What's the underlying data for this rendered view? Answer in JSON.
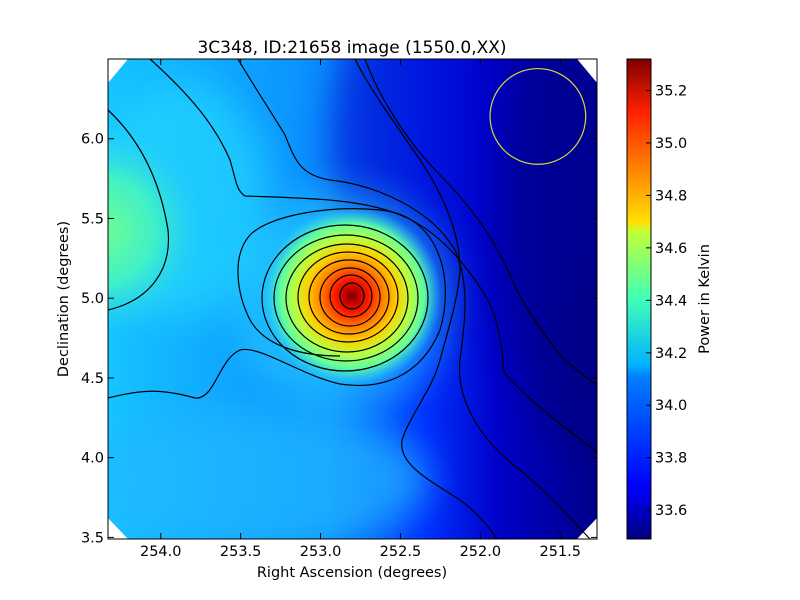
{
  "chart_data": {
    "type": "heatmap",
    "title": "3C348, ID:21658 image (1550.0,XX)",
    "xlabel": "Right Ascension (degrees)",
    "ylabel": "Declination (degrees)",
    "colorbar_label": "Power in Kelvin",
    "xlim": [
      254.33,
      251.27
    ],
    "ylim": [
      3.49,
      6.5
    ],
    "x_ticks": [
      254.0,
      253.5,
      253.0,
      252.5,
      252.0,
      251.5
    ],
    "x_tick_labels": [
      "254.0",
      "253.5",
      "253.0",
      "252.5",
      "252.0",
      "251.5"
    ],
    "y_ticks": [
      3.5,
      4.0,
      4.5,
      5.0,
      5.5,
      6.0
    ],
    "y_tick_labels": [
      "3.5",
      "4.0",
      "4.5",
      "5.0",
      "5.5",
      "6.0"
    ],
    "colorbar_range": [
      33.49,
      35.32
    ],
    "colorbar_ticks": [
      33.6,
      33.8,
      34.0,
      34.2,
      34.4,
      34.6,
      34.8,
      35.0,
      35.2
    ],
    "colorbar_tick_labels": [
      "33.6",
      "33.8",
      "34.0",
      "34.2",
      "34.4",
      "34.6",
      "34.8",
      "35.0",
      "35.2"
    ],
    "colormap": "jet",
    "peak": {
      "ra": 252.8,
      "dec": 5.01,
      "value": 35.3
    },
    "beam": {
      "ra": 251.64,
      "dec": 6.14,
      "radius_deg": 0.3,
      "color": "#d6d63a"
    },
    "contour_color": "#000000",
    "grid": false
  }
}
